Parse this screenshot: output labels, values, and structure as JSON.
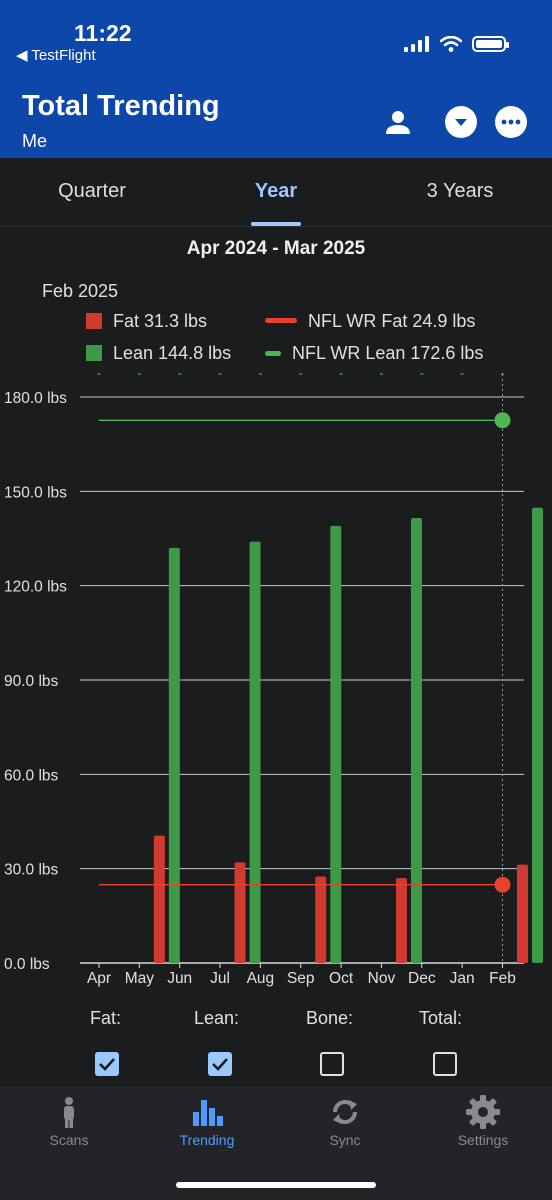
{
  "status": {
    "time": "11:22",
    "back": "◀ TestFlight"
  },
  "header": {
    "title": "Total Trending",
    "subtitle": "Me",
    "icons": [
      "person-icon",
      "chevron-down-icon",
      "more-icon"
    ]
  },
  "tabs": [
    {
      "label": "Quarter"
    },
    {
      "label": "Year"
    },
    {
      "label": "3 Years"
    }
  ],
  "range": "Apr 2024 - Mar 2025",
  "legend": {
    "date": "Feb 2025",
    "fat": "Fat  31.3 lbs",
    "lean": "Lean  144.8 lbs",
    "nfl_fat": "NFL WR Fat  24.9 lbs",
    "nfl_lean": "NFL WR Lean  172.6 lbs"
  },
  "colors": {
    "fat": "#d13b2f",
    "lean": "#3e9a46",
    "ref_fat": "#e8412f",
    "ref_lean": "#4cb84f",
    "header": "#0d47a9",
    "accent": "#9cc8ff"
  },
  "chart_data": {
    "type": "bar",
    "categories": [
      "Apr",
      "May",
      "Jun",
      "Jul",
      "Aug",
      "Sep",
      "Oct",
      "Nov",
      "Dec",
      "Jan",
      "Feb"
    ],
    "yticks": [
      "0.0 lbs",
      "30.0 lbs",
      "60.0 lbs",
      "90.0 lbs",
      "120.0 lbs",
      "150.0 lbs",
      "180.0 lbs"
    ],
    "ylim": [
      0,
      180
    ],
    "series": [
      {
        "name": "Fat",
        "values": [
          null,
          40.5,
          null,
          32,
          null,
          27.5,
          null,
          27,
          null,
          null,
          31.3
        ]
      },
      {
        "name": "Lean",
        "values": [
          null,
          132,
          null,
          134,
          null,
          139,
          null,
          141.5,
          null,
          null,
          144.8
        ]
      }
    ],
    "reference_lines": [
      {
        "name": "NFL WR Fat",
        "value": 24.9
      },
      {
        "name": "NFL WR Lean",
        "value": 172.6
      }
    ],
    "selected_category": "Feb",
    "grid": true
  },
  "checkboxes": [
    {
      "label": "Fat:",
      "checked": true
    },
    {
      "label": "Lean:",
      "checked": true
    },
    {
      "label": "Bone:",
      "checked": false
    },
    {
      "label": "Total:",
      "checked": false
    }
  ],
  "tabbar": [
    {
      "label": "Scans",
      "icon": "person-standing-icon"
    },
    {
      "label": "Trending",
      "icon": "bar-chart-icon",
      "active": true
    },
    {
      "label": "Sync",
      "icon": "sync-icon"
    },
    {
      "label": "Settings",
      "icon": "gear-icon"
    }
  ]
}
